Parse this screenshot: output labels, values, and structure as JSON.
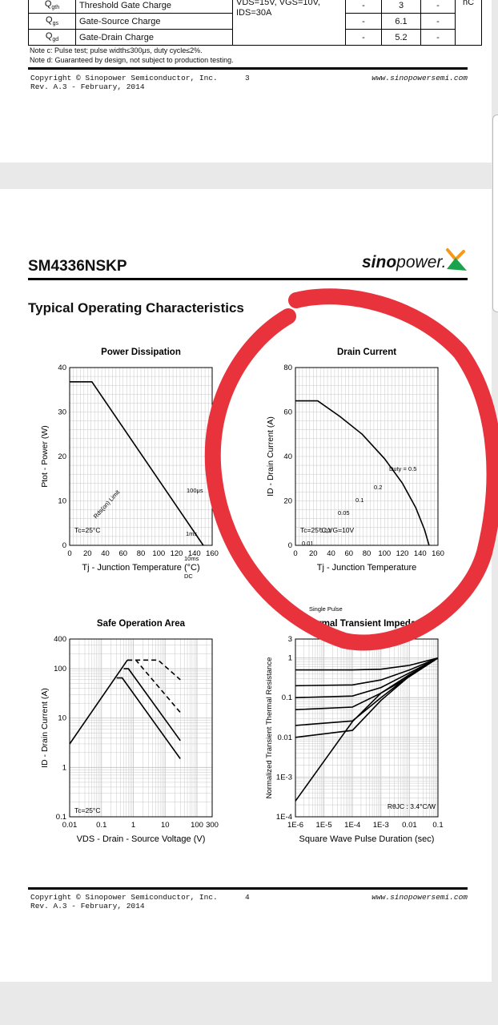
{
  "page3": {
    "spec_rows": [
      {
        "symbol": "Q",
        "sub": "gth",
        "name": "Threshold Gate Charge",
        "min": "-",
        "typ": "3",
        "max": "-"
      },
      {
        "symbol": "Q",
        "sub": "gs",
        "name": "Gate-Source Charge",
        "min": "-",
        "typ": "6.1",
        "max": "-"
      },
      {
        "symbol": "Q",
        "sub": "gd",
        "name": "Gate-Drain Charge",
        "min": "-",
        "typ": "5.2",
        "max": "-"
      }
    ],
    "conditions_line1": "VDS=15V, VGS=10V,",
    "conditions_line2": "IDS=30A",
    "unit": "nC",
    "note_c": "Note c: Pulse test; pulse width≤300μs, duty cycle≤2%.",
    "note_d": "Note d: Guaranteed by design, not subject to production testing.",
    "footer": {
      "copyright": "Copyright © Sinopower Semiconductor, Inc.",
      "rev": "Rev. A.3 - February, 2014",
      "page": "3",
      "url": "www.sinopowersemi.com"
    }
  },
  "page4": {
    "part_number": "SM4336NSKP",
    "brand_bold": "sino",
    "brand_light": "power.",
    "section_title": "Typical Operating Characteristics",
    "footer": {
      "copyright": "Copyright © Sinopower Semiconductor, Inc.",
      "rev": "Rev. A.3 - February, 2014",
      "page": "4",
      "url": "www.sinopowersemi.com"
    }
  },
  "colors": {
    "ink": "#000000",
    "grid": "#c8c8c8",
    "annotation": "#e8323c",
    "gutter": "#e9e9e9",
    "logo_orange": "#f39a1e",
    "logo_green": "#1aa34a"
  },
  "chart_data": [
    {
      "type": "line",
      "title": "Power Dissipation",
      "xlabel": "Tj - Junction Temperature (°C)",
      "ylabel": "Ptot - Power (W)",
      "xlim": [
        0,
        160
      ],
      "ylim": [
        0,
        40
      ],
      "x_ticks": [
        "0",
        "20",
        "40",
        "60",
        "80",
        "100",
        "120",
        "140",
        "160"
      ],
      "y_ticks": [
        "0",
        "10",
        "20",
        "30",
        "40"
      ],
      "series": [
        {
          "x": [
            0,
            25,
            150
          ],
          "y": [
            36.8,
            36.8,
            0
          ]
        }
      ],
      "annotation": "Tc=25°C",
      "grid": true
    },
    {
      "type": "line",
      "title": "Drain Current",
      "xlabel": "Tj - Junction Temperature",
      "ylabel": "ID - Drain Current (A)",
      "xlim": [
        0,
        160
      ],
      "ylim": [
        0,
        80
      ],
      "x_ticks": [
        "0",
        "20",
        "40",
        "60",
        "80",
        "100",
        "120",
        "140",
        "160"
      ],
      "y_ticks": [
        "0",
        "20",
        "40",
        "60",
        "80"
      ],
      "series": [
        {
          "x": [
            0,
            25,
            50,
            75,
            100,
            120,
            135,
            145,
            150
          ],
          "y": [
            65,
            65,
            58,
            50,
            39,
            28,
            17,
            7,
            0
          ]
        }
      ],
      "annotation": "Tc=25°C,VG=10V",
      "grid": true
    },
    {
      "type": "line",
      "title": "Safe Operation Area",
      "xlabel": "VDS - Drain - Source Voltage (V)",
      "ylabel": "ID - Drain Current (A)",
      "x_scale": "log",
      "y_scale": "log",
      "xlim": [
        0.01,
        300
      ],
      "ylim": [
        0.1,
        400
      ],
      "x_ticks": [
        "0.01",
        "0.1",
        "1",
        "10",
        "100",
        "300"
      ],
      "y_ticks": [
        "0.1",
        "1",
        "10",
        "100",
        "400"
      ],
      "series": [
        {
          "name": "Rds(on) Limit",
          "x": [
            0.01,
            0.65
          ],
          "y": [
            3,
            150
          ]
        },
        {
          "name": "100μs",
          "x": [
            0.65,
            1.2,
            6,
            30
          ],
          "y": [
            150,
            150,
            150,
            60
          ]
        },
        {
          "name": "1ms",
          "x": [
            0.65,
            1.2,
            30
          ],
          "y": [
            150,
            150,
            13
          ]
        },
        {
          "name": "10ms",
          "x": [
            0.5,
            0.7,
            30
          ],
          "y": [
            100,
            100,
            3.5
          ]
        },
        {
          "name": "DC",
          "x": [
            0.3,
            0.45,
            30
          ],
          "y": [
            65,
            65,
            1.5
          ]
        }
      ],
      "labels": [
        "100μs",
        "1ms",
        "10ms",
        "DC",
        "Rds(on) Limit"
      ],
      "annotation": "Tc=25°C",
      "grid": true
    },
    {
      "type": "line",
      "title": "Thermal Transient Impedance",
      "xlabel": "Square Wave Pulse Duration (sec)",
      "ylabel": "Normalized Transient Thermal Resistance",
      "x_scale": "log",
      "y_scale": "log",
      "xlim": [
        1e-06,
        0.1
      ],
      "ylim": [
        0.0001,
        3
      ],
      "x_ticks": [
        "1E-6",
        "1E-5",
        "1E-4",
        "1E-3",
        "0.01",
        "0.1"
      ],
      "y_ticks": [
        "1E-4",
        "1E-3",
        "0.01",
        "0.1",
        "1",
        "3"
      ],
      "series": [
        {
          "name": "Duty = 0.5",
          "x": [
            1e-06,
            0.0001,
            0.001,
            0.01,
            0.1
          ],
          "y": [
            0.5,
            0.5,
            0.52,
            0.65,
            1
          ]
        },
        {
          "name": "0.2",
          "x": [
            1e-06,
            0.0001,
            0.001,
            0.01,
            0.1
          ],
          "y": [
            0.2,
            0.21,
            0.28,
            0.5,
            1
          ]
        },
        {
          "name": "0.1",
          "x": [
            1e-06,
            0.0001,
            0.001,
            0.01,
            0.1
          ],
          "y": [
            0.1,
            0.11,
            0.18,
            0.42,
            1
          ]
        },
        {
          "name": "0.05",
          "x": [
            1e-06,
            0.0001,
            0.001,
            0.01,
            0.1
          ],
          "y": [
            0.05,
            0.058,
            0.13,
            0.38,
            1
          ]
        },
        {
          "name": "0.02",
          "x": [
            1e-06,
            0.0001,
            0.001,
            0.01,
            0.1
          ],
          "y": [
            0.02,
            0.026,
            0.1,
            0.36,
            1
          ]
        },
        {
          "name": "0.01",
          "x": [
            1e-06,
            0.0001,
            0.001,
            0.01,
            0.1
          ],
          "y": [
            0.01,
            0.015,
            0.085,
            0.35,
            1
          ]
        },
        {
          "name": "Single Pulse",
          "x": [
            1e-06,
            1e-05,
            0.0001,
            0.001,
            0.01,
            0.1
          ],
          "y": [
            0.00025,
            0.0025,
            0.025,
            0.13,
            0.34,
            1
          ]
        }
      ],
      "labels": [
        "Duty = 0.5",
        "0.2",
        "0.1",
        "0.05",
        "0.02",
        "0.01",
        "Single Pulse"
      ],
      "annotation": "RθJC : 3.4°C/W",
      "grid": true
    }
  ]
}
